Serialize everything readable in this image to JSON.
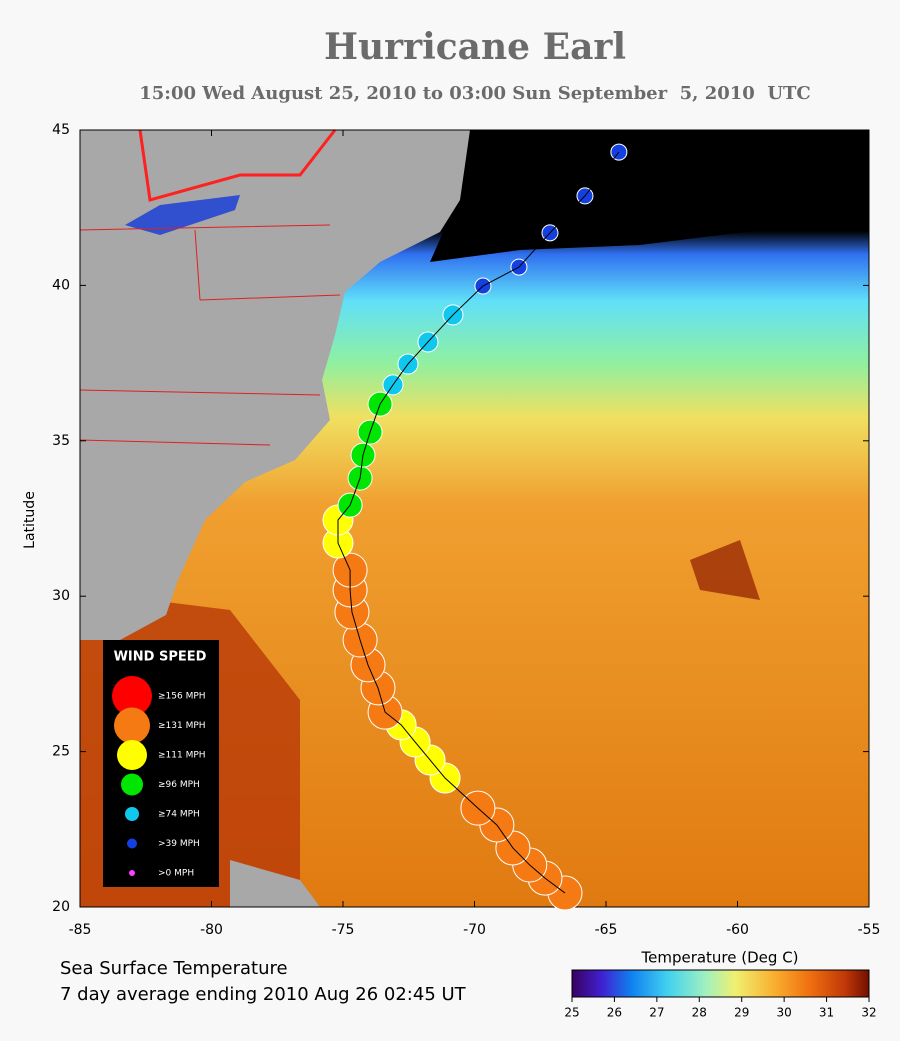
{
  "title": "Hurricane Earl",
  "subtitle": "15:00 Wed August 25, 2010 to 03:00 Sun September  5, 2010  UTC",
  "y_label": "Latitude",
  "xlim": [
    -85,
    -55
  ],
  "xticks": [
    -85,
    -80,
    -75,
    -70,
    -65,
    -60,
    -55
  ],
  "ylim": [
    20,
    45
  ],
  "yticks": [
    20,
    25,
    30,
    35,
    40,
    45
  ],
  "legend": {
    "title": "WIND SPEED",
    "items": [
      {
        "label": "≥156 MPH",
        "color": "#ff0000"
      },
      {
        "label": "≥131 MPH",
        "color": "#f57a14"
      },
      {
        "label": "≥111 MPH",
        "color": "#ffff00"
      },
      {
        "label": "≥96 MPH",
        "color": "#00e600"
      },
      {
        "label": "≥74 MPH",
        "color": "#10c8ee"
      },
      {
        "label": ">39 MPH",
        "color": "#1440e0"
      },
      {
        "label": ">0 MPH",
        "color": "#ff40ff"
      }
    ]
  },
  "track": {
    "lon": [
      -66.56,
      -67.32,
      -67.9,
      -68.54,
      -69.15,
      -69.87,
      -71.12,
      -71.69,
      -72.26,
      -72.79,
      -73.4,
      -73.67,
      -74.05,
      -74.35,
      -74.66,
      -74.73,
      -74.73,
      -75.19,
      -75.19,
      -74.73,
      -74.35,
      -74.24,
      -73.97,
      -73.59,
      -73.1,
      -72.53,
      -71.77,
      -70.82,
      -69.68,
      -68.31,
      -67.13,
      -65.8,
      -64.51
    ],
    "lat": [
      20.45,
      20.93,
      21.35,
      21.9,
      22.64,
      23.18,
      24.15,
      24.73,
      25.31,
      25.86,
      26.27,
      27.05,
      27.79,
      28.59,
      29.49,
      30.2,
      30.84,
      31.71,
      32.45,
      32.93,
      33.8,
      34.54,
      35.28,
      36.18,
      36.8,
      37.47,
      38.18,
      39.05,
      39.98,
      40.59,
      41.69,
      42.88,
      44.29
    ],
    "colors": [
      "#f57a14",
      "#f57a14",
      "#f57a14",
      "#f57a14",
      "#f57a14",
      "#f57a14",
      "#ffff00",
      "#ffff00",
      "#ffff00",
      "#ffff00",
      "#f57a14",
      "#f57a14",
      "#f57a14",
      "#f57a14",
      "#f57a14",
      "#f57a14",
      "#f57a14",
      "#ffff00",
      "#ffff00",
      "#00e600",
      "#00e600",
      "#00e600",
      "#00e600",
      "#00e600",
      "#10c8ee",
      "#10c8ee",
      "#10c8ee",
      "#10c8ee",
      "#1440e0",
      "#1440e0",
      "#1440e0",
      "#1440e0",
      "#1440e0"
    ]
  },
  "notes": [
    "Sea Surface Temperature",
    "7 day average ending 2010 Aug 26 02:45 UT"
  ],
  "colorbar": {
    "label": "Temperature (Deg C)",
    "lim": [
      25,
      32
    ],
    "ticks": [
      25,
      26,
      27,
      28,
      29,
      30,
      31,
      32
    ]
  }
}
